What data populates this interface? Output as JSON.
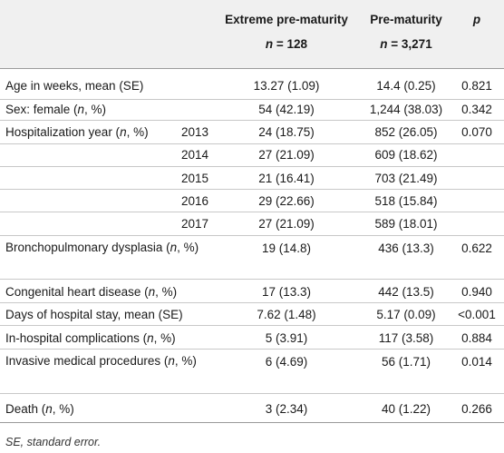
{
  "header": {
    "col_extreme": "Extreme pre-maturity",
    "col_pre": "Pre-maturity",
    "col_p": "p",
    "n_extreme_var": "n",
    "n_extreme_val": " = 128",
    "n_pre_var": "n",
    "n_pre_val": " = 3,271"
  },
  "rows": {
    "age": {
      "label": "Age in weeks, mean (SE)",
      "ext": "13.27 (1.09)",
      "pre": "14.4 (0.25)",
      "p": "0.821"
    },
    "sex": {
      "label_a": "Sex: female (",
      "label_n": "n",
      "label_b": ", %)",
      "ext": "54 (42.19)",
      "pre": "1,244 (38.03)",
      "p": "0.342"
    },
    "hosp": {
      "label_a": "Hospitalization year (",
      "label_n": "n",
      "label_b": ", %)",
      "p": "0.070",
      "years": [
        {
          "year": "2013",
          "ext": "24 (18.75)",
          "pre": "852 (26.05)"
        },
        {
          "year": "2014",
          "ext": "27 (21.09)",
          "pre": "609 (18.62)"
        },
        {
          "year": "2015",
          "ext": "21 (16.41)",
          "pre": "703 (21.49)"
        },
        {
          "year": "2016",
          "ext": "29 (22.66)",
          "pre": "518 (15.84)"
        },
        {
          "year": "2017",
          "ext": "27 (21.09)",
          "pre": "589 (18.01)"
        }
      ]
    },
    "bpd": {
      "label_a": "Bronchopulmonary dysplasia (",
      "label_n": "n",
      "label_b": ", %)",
      "ext": "19 (14.8)",
      "pre": "436 (13.3)",
      "p": "0.622"
    },
    "chd": {
      "label_a": "Congenital heart disease (",
      "label_n": "n",
      "label_b": ", %)",
      "ext": "17 (13.3)",
      "pre": "442 (13.5)",
      "p": "0.940"
    },
    "stay": {
      "label": "Days of hospital stay, mean (SE)",
      "ext": "7.62 (1.48)",
      "pre": "5.17 (0.09)",
      "p": "<0.001"
    },
    "comp": {
      "label_a": "In-hospital complications (",
      "label_n": "n",
      "label_b": ", %)",
      "ext": "5 (3.91)",
      "pre": "117 (3.58)",
      "p": "0.884"
    },
    "proc": {
      "label_a": "Invasive medical procedures (",
      "label_n": "n",
      "label_b": ", %)",
      "ext": "6 (4.69)",
      "pre": "56 (1.71)",
      "p": "0.014"
    },
    "death": {
      "label_a": "Death (",
      "label_n": "n",
      "label_b": ", %)",
      "ext": "3 (2.34)",
      "pre": "40 (1.22)",
      "p": "0.266"
    }
  },
  "footnote": "SE, standard error."
}
